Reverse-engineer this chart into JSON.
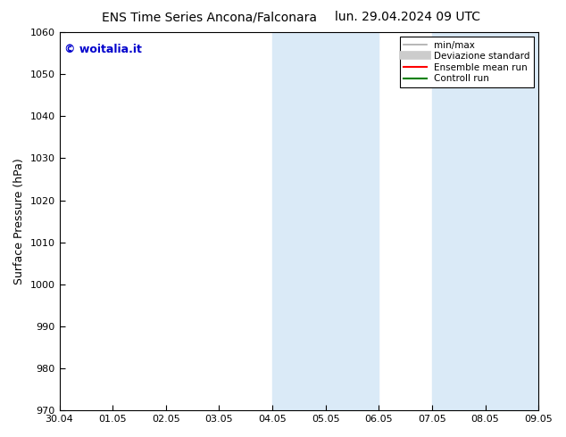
{
  "title_left": "ENS Time Series Ancona/Falconara",
  "title_right": "lun. 29.04.2024 09 UTC",
  "ylabel": "Surface Pressure (hPa)",
  "ylim": [
    970,
    1060
  ],
  "yticks": [
    970,
    980,
    990,
    1000,
    1010,
    1020,
    1030,
    1040,
    1050,
    1060
  ],
  "xlabels": [
    "30.04",
    "01.05",
    "02.05",
    "03.05",
    "04.05",
    "05.05",
    "06.05",
    "07.05",
    "08.05",
    "09.05"
  ],
  "background_color": "#ffffff",
  "plot_bg_color": "#ffffff",
  "shaded_regions": [
    {
      "xstart": 4.0,
      "xend": 5.0,
      "color": "#daeaf7"
    },
    {
      "xstart": 5.0,
      "xend": 6.0,
      "color": "#daeaf7"
    },
    {
      "xstart": 7.0,
      "xend": 8.0,
      "color": "#daeaf7"
    },
    {
      "xstart": 8.0,
      "xend": 9.0,
      "color": "#daeaf7"
    }
  ],
  "legend_entries": [
    {
      "label": "min/max",
      "color": "#aaaaaa",
      "linewidth": 1.2,
      "linestyle": "-"
    },
    {
      "label": "Deviazione standard",
      "color": "#cccccc",
      "linewidth": 7,
      "linestyle": "-"
    },
    {
      "label": "Ensemble mean run",
      "color": "#ff0000",
      "linewidth": 1.5,
      "linestyle": "-"
    },
    {
      "label": "Controll run",
      "color": "#008000",
      "linewidth": 1.5,
      "linestyle": "-"
    }
  ],
  "watermark": "© woitalia.it",
  "watermark_color": "#0000cc",
  "title_fontsize": 10,
  "ylabel_fontsize": 9,
  "tick_fontsize": 8,
  "legend_fontsize": 7.5,
  "watermark_fontsize": 9
}
